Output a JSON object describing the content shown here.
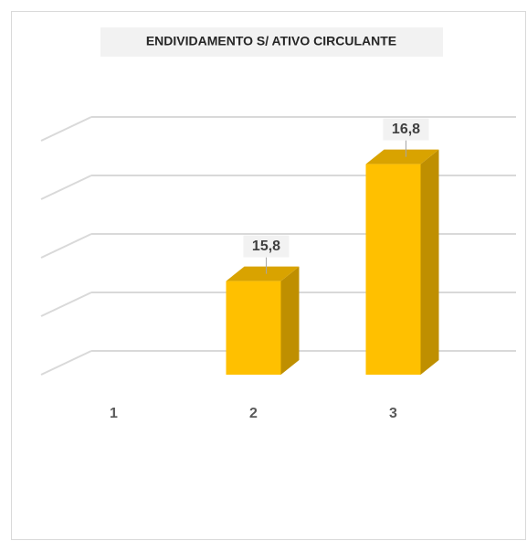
{
  "chart_data": {
    "type": "bar3d",
    "title": "ENDIVIDAMENTO S/ ATIVO CIRCULANTE",
    "categories": [
      "1",
      "2",
      "3"
    ],
    "values": [
      null,
      15.8,
      16.8
    ],
    "value_labels": [
      null,
      "15,8",
      "16,8"
    ],
    "color": "#ffc000",
    "ylim": [
      15,
      17
    ],
    "yticks": [
      15,
      15.5,
      16,
      16.5,
      17
    ],
    "grid": true
  }
}
